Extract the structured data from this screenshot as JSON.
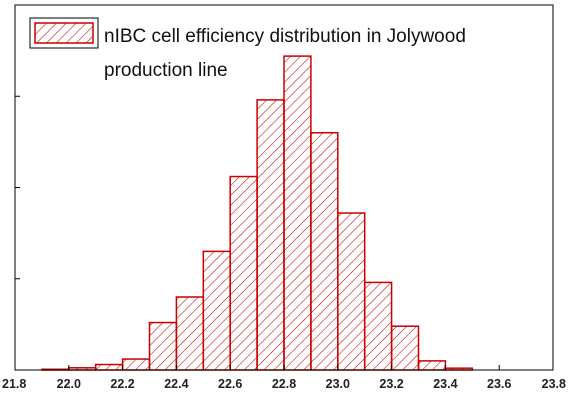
{
  "chart_data": {
    "type": "bar",
    "title": "",
    "xlabel": "",
    "ylabel": "",
    "legend": {
      "label_lines": [
        "nIBC cell efficiency distribution in Jolywood",
        "production line"
      ],
      "position": "top-left"
    },
    "colors": {
      "bar_edge": "#cc0000",
      "hatch": "#cc0000",
      "frame": "#000000"
    },
    "grid": false,
    "xlim": [
      21.8,
      23.8
    ],
    "xticks": [
      "21.8",
      "22.0",
      "22.2",
      "22.4",
      "22.6",
      "22.8",
      "23.0",
      "23.2",
      "23.4",
      "23.6",
      "23.8"
    ],
    "ylim": [
      0,
      100
    ],
    "bin_width": 0.1,
    "bins": [
      {
        "start": 21.9,
        "value": 0.2
      },
      {
        "start": 22.0,
        "value": 0.6
      },
      {
        "start": 22.1,
        "value": 1.5
      },
      {
        "start": 22.2,
        "value": 3.0
      },
      {
        "start": 22.3,
        "value": 13.0
      },
      {
        "start": 22.4,
        "value": 20.0
      },
      {
        "start": 22.5,
        "value": 32.5
      },
      {
        "start": 22.6,
        "value": 53.0
      },
      {
        "start": 22.7,
        "value": 74.0
      },
      {
        "start": 22.8,
        "value": 86.0
      },
      {
        "start": 22.9,
        "value": 65.0
      },
      {
        "start": 23.0,
        "value": 43.0
      },
      {
        "start": 23.1,
        "value": 24.0
      },
      {
        "start": 23.2,
        "value": 12.0
      },
      {
        "start": 23.3,
        "value": 2.5
      },
      {
        "start": 23.4,
        "value": 0.5
      }
    ]
  }
}
